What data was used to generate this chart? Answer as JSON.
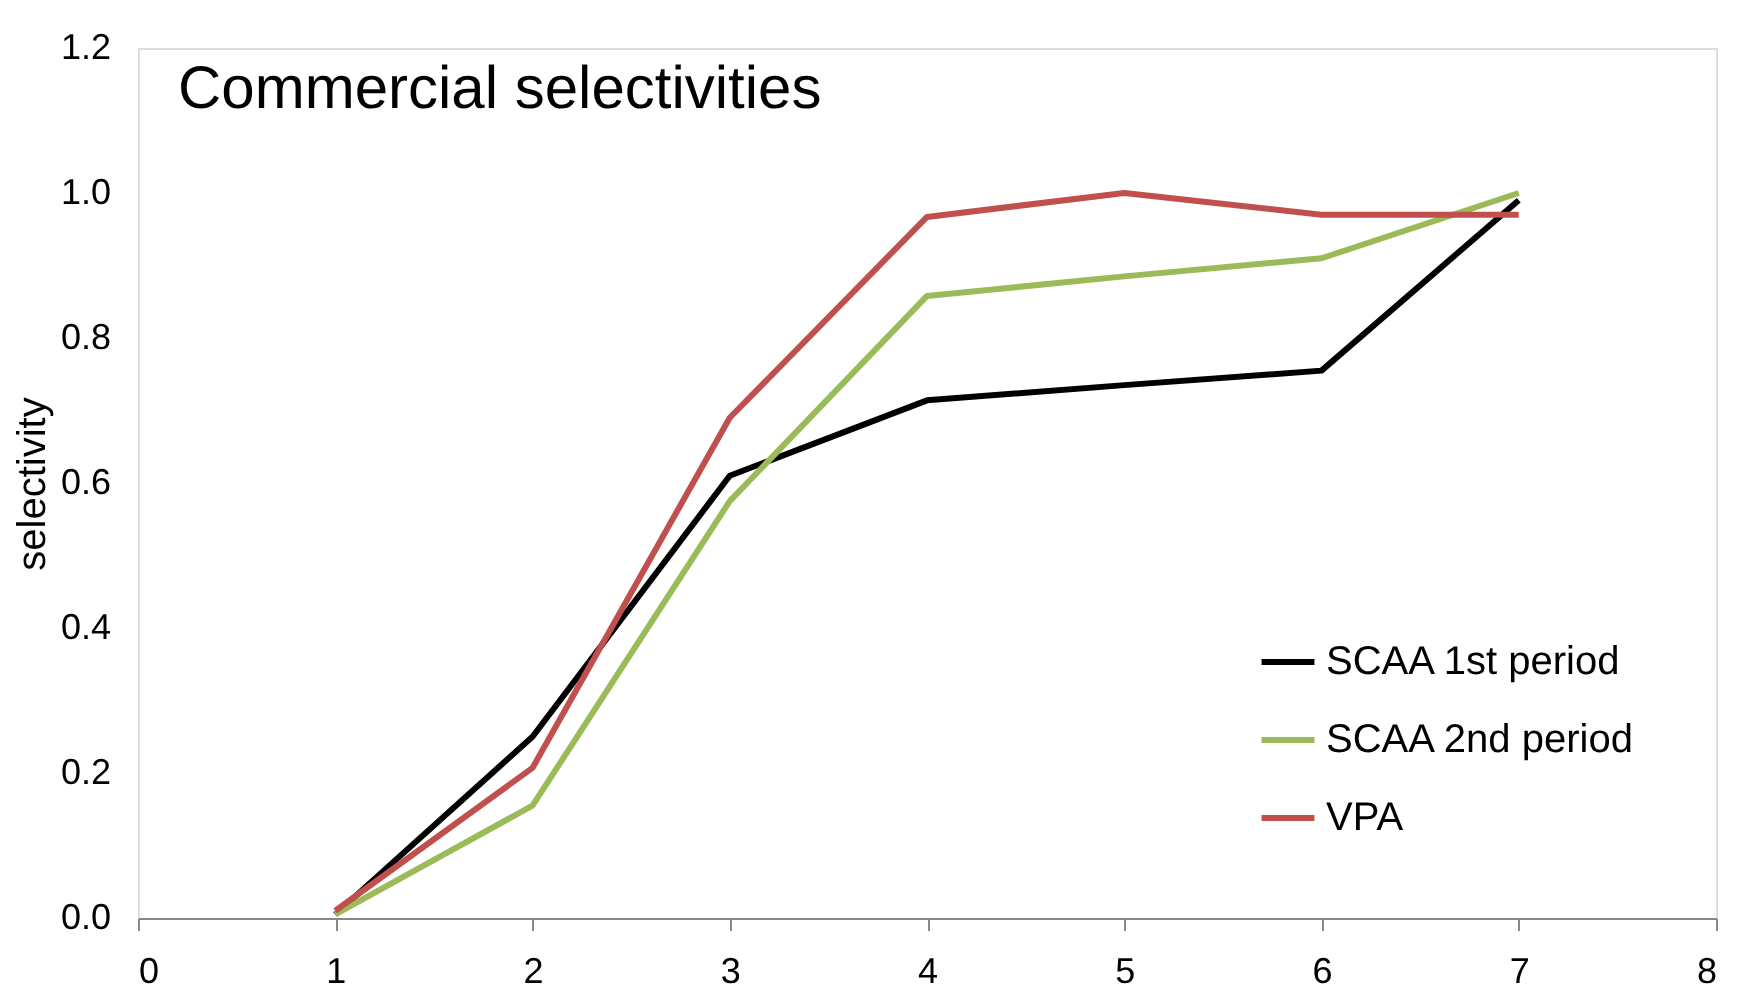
{
  "chart_data": {
    "type": "line",
    "title": "Commercial selectivities",
    "ylabel": "selectivity",
    "x": [
      1,
      2,
      3,
      4,
      5,
      6,
      7
    ],
    "series": [
      {
        "name": "SCAA 1st period",
        "color": "#000000",
        "values": [
          0.005,
          0.25,
          0.61,
          0.714,
          0.735,
          0.755,
          0.99
        ]
      },
      {
        "name": "SCAA 2nd period",
        "color": "#9bbb59",
        "values": [
          0.005,
          0.155,
          0.575,
          0.858,
          0.885,
          0.91,
          1.0
        ]
      },
      {
        "name": "VPA",
        "color": "#c0504d",
        "values": [
          0.01,
          0.207,
          0.69,
          0.967,
          1.0,
          0.97,
          0.97
        ]
      }
    ],
    "xlim": [
      0,
      8
    ],
    "xticks": [
      0,
      1,
      2,
      3,
      4,
      5,
      6,
      7,
      8
    ],
    "ylim": [
      0,
      1.2
    ],
    "yticks": [
      {
        "value": 0,
        "label": "0.0"
      },
      0.2,
      0.4,
      0.6,
      0.8,
      {
        "value": 1,
        "label": "1.0"
      },
      1.2
    ],
    "grid": false,
    "legend": "bottom right",
    "marker": "none",
    "line_style": "solid"
  }
}
